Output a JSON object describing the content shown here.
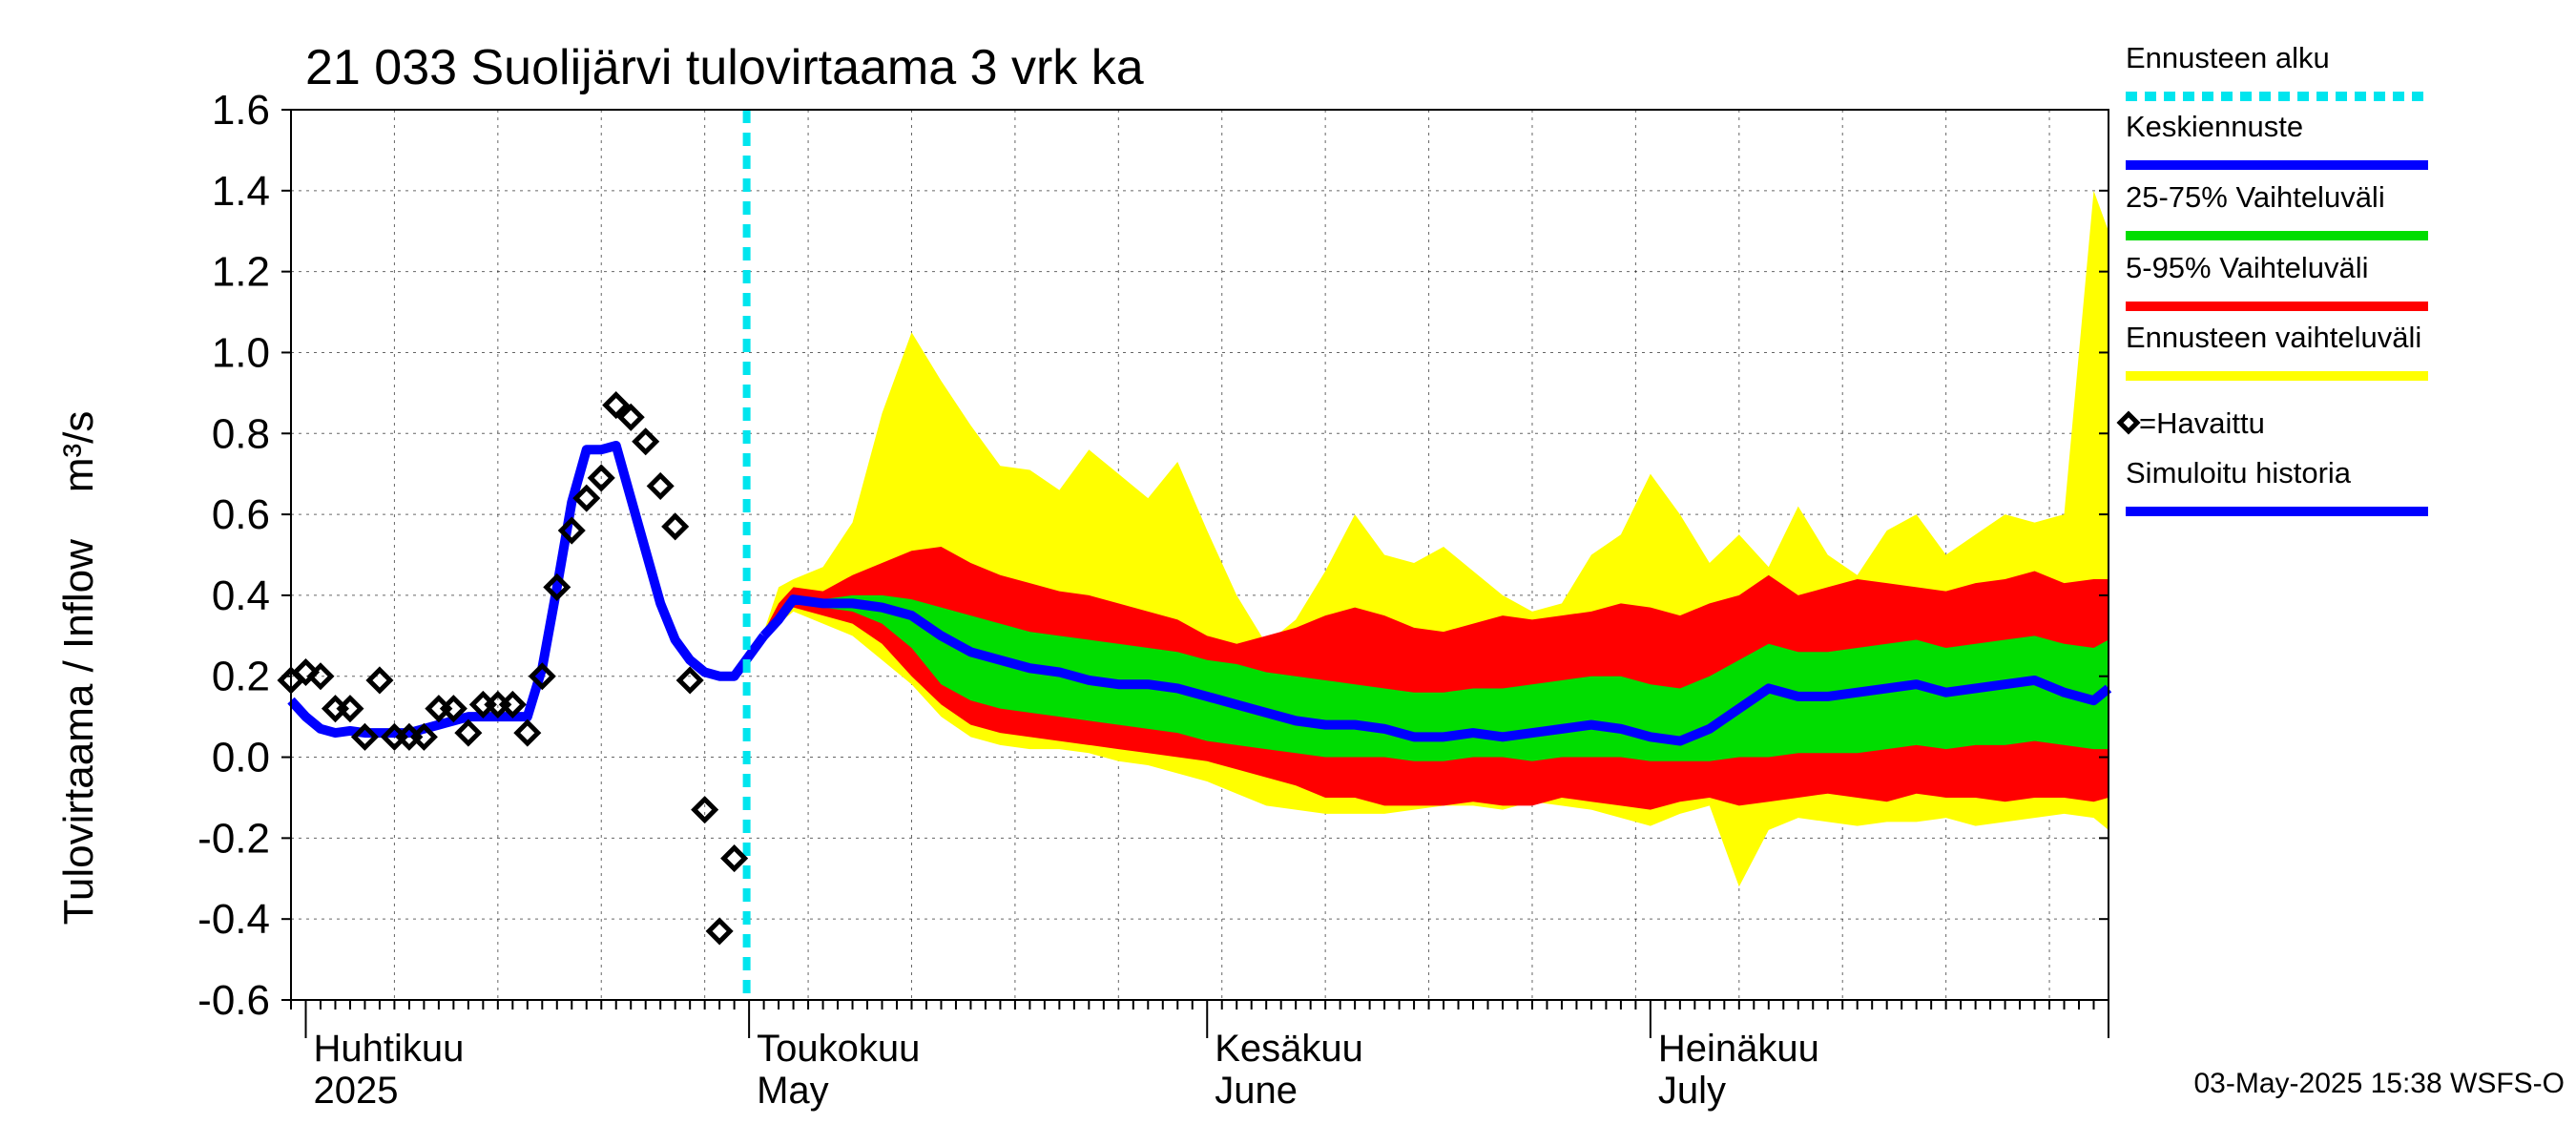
{
  "chart_data": {
    "type": "area",
    "title": "21 033 Suolijärvi tulovirtaama 3 vrk ka",
    "ylabel": "Tulovirtaama / Inflow    m³/s",
    "xlabel": "",
    "ylim": [
      -0.6,
      1.6
    ],
    "yticks": [
      "-0.6",
      "-0.4",
      "-0.2",
      "0.0",
      "0.2",
      "0.4",
      "0.6",
      "0.8",
      "1.0",
      "1.2",
      "1.4",
      "1.6"
    ],
    "x_range": [
      "2025-03-31",
      "2025-08-01"
    ],
    "grid": true,
    "legend_position": "right",
    "forecast_start": "2025-05-02",
    "month_labels": [
      {
        "fi": "Huhtikuu",
        "en": "2025",
        "date": "2025-04-01"
      },
      {
        "fi": "Toukokuu",
        "en": "May",
        "date": "2025-05-01"
      },
      {
        "fi": "Kesäkuu",
        "en": "June",
        "date": "2025-06-01"
      },
      {
        "fi": "Heinäkuu",
        "en": "July",
        "date": "2025-07-01"
      }
    ],
    "legend": [
      {
        "label": "Ennusteen alku",
        "color": "#00e5ee",
        "style": "dashed"
      },
      {
        "label": "Keskiennuste",
        "color": "#0000ff",
        "style": "line"
      },
      {
        "label": "25-75% Vaihteluväli",
        "color": "#00dd00",
        "style": "line"
      },
      {
        "label": "5-95% Vaihteluväli",
        "color": "#ff0000",
        "style": "line"
      },
      {
        "label": "Ennusteen vaihteluväli",
        "color": "#ffff00",
        "style": "line"
      },
      {
        "label": "=Havaittu",
        "color": "#000000",
        "style": "marker"
      },
      {
        "label": "Simuloitu historia",
        "color": "#0000ff",
        "style": "line"
      }
    ],
    "simulated_history": {
      "x": [
        "2025-03-31",
        "2025-04-01",
        "2025-04-02",
        "2025-04-03",
        "2025-04-04",
        "2025-04-05",
        "2025-04-06",
        "2025-04-07",
        "2025-04-08",
        "2025-04-09",
        "2025-04-10",
        "2025-04-11",
        "2025-04-12",
        "2025-04-13",
        "2025-04-14",
        "2025-04-15",
        "2025-04-16",
        "2025-04-17",
        "2025-04-18",
        "2025-04-19",
        "2025-04-20",
        "2025-04-21",
        "2025-04-22",
        "2025-04-23",
        "2025-04-24",
        "2025-04-25",
        "2025-04-26",
        "2025-04-27",
        "2025-04-28",
        "2025-04-29",
        "2025-04-30",
        "2025-05-01",
        "2025-05-02"
      ],
      "y": [
        0.14,
        0.1,
        0.07,
        0.06,
        0.065,
        0.06,
        0.06,
        0.06,
        0.06,
        0.07,
        0.08,
        0.09,
        0.1,
        0.1,
        0.1,
        0.1,
        0.1,
        0.22,
        0.42,
        0.63,
        0.76,
        0.76,
        0.77,
        0.64,
        0.51,
        0.38,
        0.29,
        0.24,
        0.21,
        0.2,
        0.2,
        0.25,
        0.3
      ]
    },
    "observed": {
      "x": [
        "2025-03-31",
        "2025-04-01",
        "2025-04-02",
        "2025-04-03",
        "2025-04-04",
        "2025-04-05",
        "2025-04-06",
        "2025-04-07",
        "2025-04-08",
        "2025-04-09",
        "2025-04-10",
        "2025-04-11",
        "2025-04-12",
        "2025-04-13",
        "2025-04-14",
        "2025-04-15",
        "2025-04-16",
        "2025-04-17",
        "2025-04-18",
        "2025-04-19",
        "2025-04-20",
        "2025-04-21",
        "2025-04-22",
        "2025-04-23",
        "2025-04-24",
        "2025-04-25",
        "2025-04-26",
        "2025-04-27",
        "2025-04-28",
        "2025-04-29",
        "2025-04-30"
      ],
      "y": [
        0.19,
        0.21,
        0.2,
        0.12,
        0.12,
        0.05,
        0.19,
        0.05,
        0.05,
        0.05,
        0.12,
        0.12,
        0.06,
        0.13,
        0.13,
        0.13,
        0.06,
        0.2,
        0.42,
        0.56,
        0.64,
        0.69,
        0.87,
        0.84,
        0.78,
        0.67,
        0.57,
        0.19,
        -0.13,
        -0.43,
        -0.25
      ]
    },
    "forecast": {
      "x": [
        "2025-05-02",
        "2025-05-03",
        "2025-05-04",
        "2025-05-06",
        "2025-05-08",
        "2025-05-10",
        "2025-05-12",
        "2025-05-14",
        "2025-05-16",
        "2025-05-18",
        "2025-05-20",
        "2025-05-22",
        "2025-05-24",
        "2025-05-26",
        "2025-05-28",
        "2025-05-30",
        "2025-06-01",
        "2025-06-03",
        "2025-06-05",
        "2025-06-07",
        "2025-06-09",
        "2025-06-11",
        "2025-06-13",
        "2025-06-15",
        "2025-06-17",
        "2025-06-19",
        "2025-06-21",
        "2025-06-23",
        "2025-06-25",
        "2025-06-27",
        "2025-06-29",
        "2025-07-01",
        "2025-07-03",
        "2025-07-05",
        "2025-07-07",
        "2025-07-09",
        "2025-07-11",
        "2025-07-13",
        "2025-07-15",
        "2025-07-17",
        "2025-07-19",
        "2025-07-21",
        "2025-07-23",
        "2025-07-25",
        "2025-07-27",
        "2025-07-29",
        "2025-07-31",
        "2025-08-01"
      ],
      "median": [
        0.3,
        0.34,
        0.39,
        0.38,
        0.38,
        0.37,
        0.35,
        0.3,
        0.26,
        0.24,
        0.22,
        0.21,
        0.19,
        0.18,
        0.18,
        0.17,
        0.15,
        0.13,
        0.11,
        0.09,
        0.08,
        0.08,
        0.07,
        0.05,
        0.05,
        0.06,
        0.05,
        0.06,
        0.07,
        0.08,
        0.07,
        0.05,
        0.04,
        0.07,
        0.12,
        0.17,
        0.15,
        0.15,
        0.16,
        0.17,
        0.18,
        0.16,
        0.17,
        0.18,
        0.19,
        0.16,
        0.14,
        0.17
      ],
      "p25": [
        0.3,
        0.34,
        0.39,
        0.37,
        0.36,
        0.33,
        0.27,
        0.18,
        0.14,
        0.12,
        0.11,
        0.1,
        0.09,
        0.08,
        0.07,
        0.06,
        0.04,
        0.03,
        0.02,
        0.01,
        0.0,
        0.0,
        0.0,
        -0.01,
        -0.01,
        0.0,
        0.0,
        -0.01,
        0.0,
        0.0,
        0.0,
        -0.01,
        -0.01,
        -0.01,
        0.0,
        0.0,
        0.01,
        0.01,
        0.01,
        0.02,
        0.03,
        0.02,
        0.03,
        0.03,
        0.04,
        0.03,
        0.02,
        0.02
      ],
      "p75": [
        0.3,
        0.34,
        0.39,
        0.39,
        0.4,
        0.4,
        0.39,
        0.37,
        0.35,
        0.33,
        0.31,
        0.3,
        0.29,
        0.28,
        0.27,
        0.26,
        0.24,
        0.23,
        0.21,
        0.2,
        0.19,
        0.18,
        0.17,
        0.16,
        0.16,
        0.17,
        0.17,
        0.18,
        0.19,
        0.2,
        0.2,
        0.18,
        0.17,
        0.2,
        0.24,
        0.28,
        0.26,
        0.26,
        0.27,
        0.28,
        0.29,
        0.27,
        0.28,
        0.29,
        0.3,
        0.28,
        0.27,
        0.29
      ],
      "p05": [
        0.3,
        0.33,
        0.37,
        0.35,
        0.33,
        0.28,
        0.2,
        0.13,
        0.08,
        0.06,
        0.05,
        0.04,
        0.03,
        0.02,
        0.01,
        0.0,
        -0.01,
        -0.03,
        -0.05,
        -0.07,
        -0.1,
        -0.1,
        -0.12,
        -0.12,
        -0.12,
        -0.11,
        -0.12,
        -0.12,
        -0.1,
        -0.11,
        -0.12,
        -0.13,
        -0.11,
        -0.1,
        -0.12,
        -0.11,
        -0.1,
        -0.09,
        -0.1,
        -0.11,
        -0.09,
        -0.1,
        -0.1,
        -0.11,
        -0.1,
        -0.1,
        -0.11,
        -0.1
      ],
      "p95": [
        0.31,
        0.38,
        0.42,
        0.41,
        0.45,
        0.48,
        0.51,
        0.52,
        0.48,
        0.45,
        0.43,
        0.41,
        0.4,
        0.38,
        0.36,
        0.34,
        0.3,
        0.28,
        0.3,
        0.32,
        0.35,
        0.37,
        0.35,
        0.32,
        0.31,
        0.33,
        0.35,
        0.34,
        0.35,
        0.36,
        0.38,
        0.37,
        0.35,
        0.38,
        0.4,
        0.45,
        0.4,
        0.42,
        0.44,
        0.43,
        0.42,
        0.41,
        0.43,
        0.44,
        0.46,
        0.43,
        0.44,
        0.44
      ],
      "min": [
        0.3,
        0.33,
        0.36,
        0.33,
        0.3,
        0.24,
        0.18,
        0.1,
        0.05,
        0.03,
        0.02,
        0.02,
        0.01,
        -0.01,
        -0.02,
        -0.04,
        -0.06,
        -0.09,
        -0.12,
        -0.13,
        -0.14,
        -0.14,
        -0.14,
        -0.13,
        -0.12,
        -0.12,
        -0.13,
        -0.11,
        -0.12,
        -0.13,
        -0.15,
        -0.17,
        -0.14,
        -0.12,
        -0.32,
        -0.18,
        -0.15,
        -0.16,
        -0.17,
        -0.16,
        -0.16,
        -0.15,
        -0.17,
        -0.16,
        -0.15,
        -0.14,
        -0.15,
        -0.18
      ],
      "max": [
        0.31,
        0.42,
        0.44,
        0.47,
        0.58,
        0.85,
        1.05,
        0.93,
        0.82,
        0.72,
        0.71,
        0.66,
        0.76,
        0.7,
        0.64,
        0.73,
        0.56,
        0.4,
        0.28,
        0.34,
        0.46,
        0.6,
        0.5,
        0.48,
        0.52,
        0.46,
        0.4,
        0.36,
        0.38,
        0.5,
        0.55,
        0.7,
        0.6,
        0.48,
        0.55,
        0.47,
        0.62,
        0.5,
        0.45,
        0.56,
        0.6,
        0.5,
        0.55,
        0.6,
        0.58,
        0.6,
        1.4,
        1.3
      ]
    }
  },
  "footer": {
    "timestamp": "03-May-2025 15:38 WSFS-O"
  }
}
